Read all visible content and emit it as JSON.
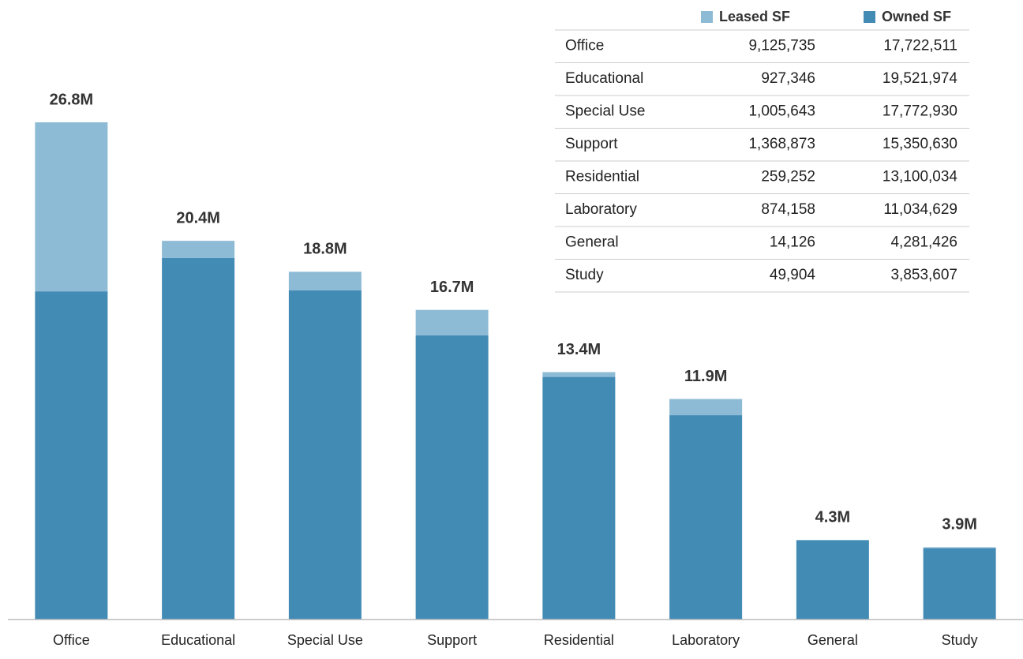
{
  "chart_data": {
    "type": "stacked-bar",
    "categories": [
      "Office",
      "Educational",
      "Special Use",
      "Support",
      "Residential",
      "Laboratory",
      "General",
      "Study"
    ],
    "series": [
      {
        "name": "Leased SF",
        "color": "#8dbad5",
        "values": [
          9125735,
          927346,
          1005643,
          1368873,
          259252,
          874158,
          14126,
          49904
        ],
        "value_labels": [
          "9,125,735",
          "927,346",
          "1,005,643",
          "1,368,873",
          "259,252",
          "874,158",
          "14,126",
          "49,904"
        ]
      },
      {
        "name": "Owned SF",
        "color": "#428bb5",
        "values": [
          17722511,
          19521974,
          17772930,
          15350630,
          13100034,
          11034629,
          4281426,
          3853607
        ],
        "value_labels": [
          "17,722,511",
          "19,521,974",
          "17,772,930",
          "15,350,630",
          "13,100,034",
          "11,034,629",
          "4,281,426",
          "3,853,607"
        ]
      }
    ],
    "total_labels": [
      "26.8M",
      "20.4M",
      "18.8M",
      "16.7M",
      "13.4M",
      "11.9M",
      "4.3M",
      "3.9M"
    ]
  }
}
